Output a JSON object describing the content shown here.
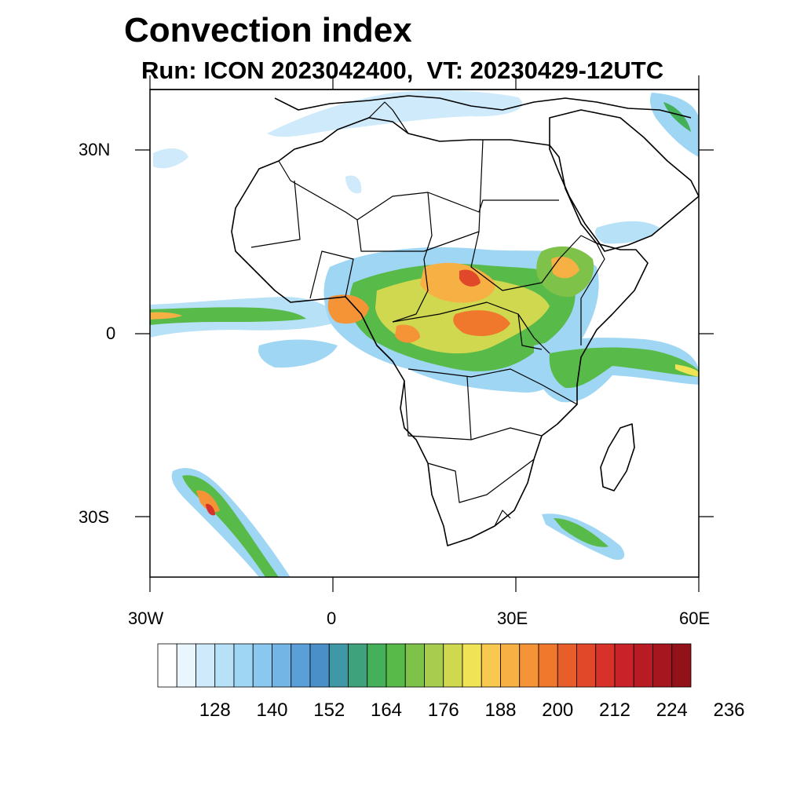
{
  "title": "Convection index",
  "subtitle": "Run: ICON 2023042400,  VT: 20230429-12UTC",
  "map": {
    "lon_range": [
      -30,
      60
    ],
    "lat_range": [
      -40,
      40
    ],
    "lat_labels": [
      "30N",
      "0",
      "30S"
    ],
    "lon_labels": [
      "30W",
      "0",
      "30E",
      "60E"
    ]
  },
  "colorbar": {
    "levels": [
      128,
      140,
      152,
      164,
      176,
      188,
      200,
      212,
      224,
      236
    ],
    "colors": [
      "#ffffff",
      "#eaf6fd",
      "#cfeafa",
      "#b7e1f7",
      "#9fd6f4",
      "#8ac8ef",
      "#73b6e6",
      "#5b9fd8",
      "#4a8fc8",
      "#3f98a6",
      "#3ea37c",
      "#44b05a",
      "#58ba48",
      "#7ec24a",
      "#a8cd4e",
      "#cfd84f",
      "#f1e356",
      "#f8c94e",
      "#f7b043",
      "#f59437",
      "#f0782d",
      "#e85e2a",
      "#e04829",
      "#d83129",
      "#c92228",
      "#b81b23",
      "#a5161f",
      "#911219"
    ]
  }
}
